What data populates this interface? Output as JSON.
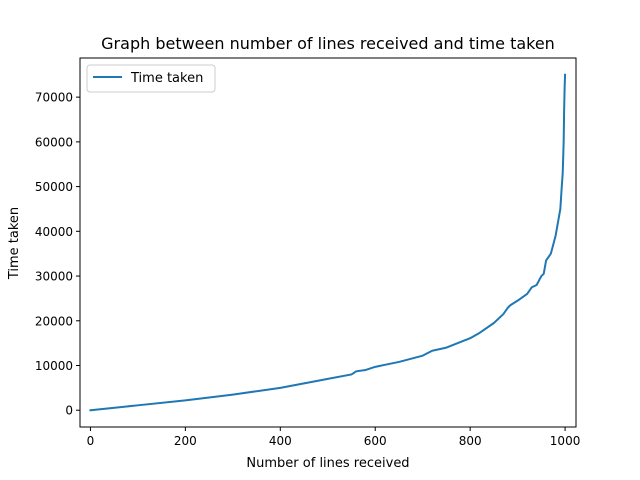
{
  "chart_data": {
    "type": "line",
    "title": "Graph between number of lines received and time taken",
    "xlabel": "Number of lines received",
    "ylabel": "Time taken",
    "xlim": [
      -22,
      1023
    ],
    "ylim": [
      -3750,
      78750
    ],
    "xticks": [
      0,
      200,
      400,
      600,
      800,
      1000
    ],
    "yticks": [
      0,
      10000,
      20000,
      30000,
      40000,
      50000,
      60000,
      70000
    ],
    "grid": false,
    "legend_position": "upper left",
    "series": [
      {
        "name": "Time taken",
        "color": "#1f77b4",
        "x": [
          0,
          100,
          200,
          300,
          400,
          450,
          500,
          550,
          560,
          580,
          600,
          650,
          700,
          720,
          750,
          800,
          820,
          850,
          870,
          880,
          885,
          900,
          920,
          930,
          940,
          950,
          955,
          960,
          970,
          975,
          980,
          985,
          990,
          993,
          995,
          997,
          998,
          999,
          1000
        ],
        "values": [
          0,
          1100,
          2200,
          3500,
          5000,
          6000,
          7000,
          8000,
          8700,
          9000,
          9700,
          10800,
          12200,
          13300,
          14000,
          16100,
          17300,
          19500,
          21500,
          23000,
          23500,
          24500,
          26000,
          27500,
          28000,
          30000,
          30500,
          33500,
          35000,
          37000,
          39000,
          42000,
          45000,
          50000,
          53000,
          60000,
          67000,
          72000,
          75000
        ]
      }
    ]
  }
}
